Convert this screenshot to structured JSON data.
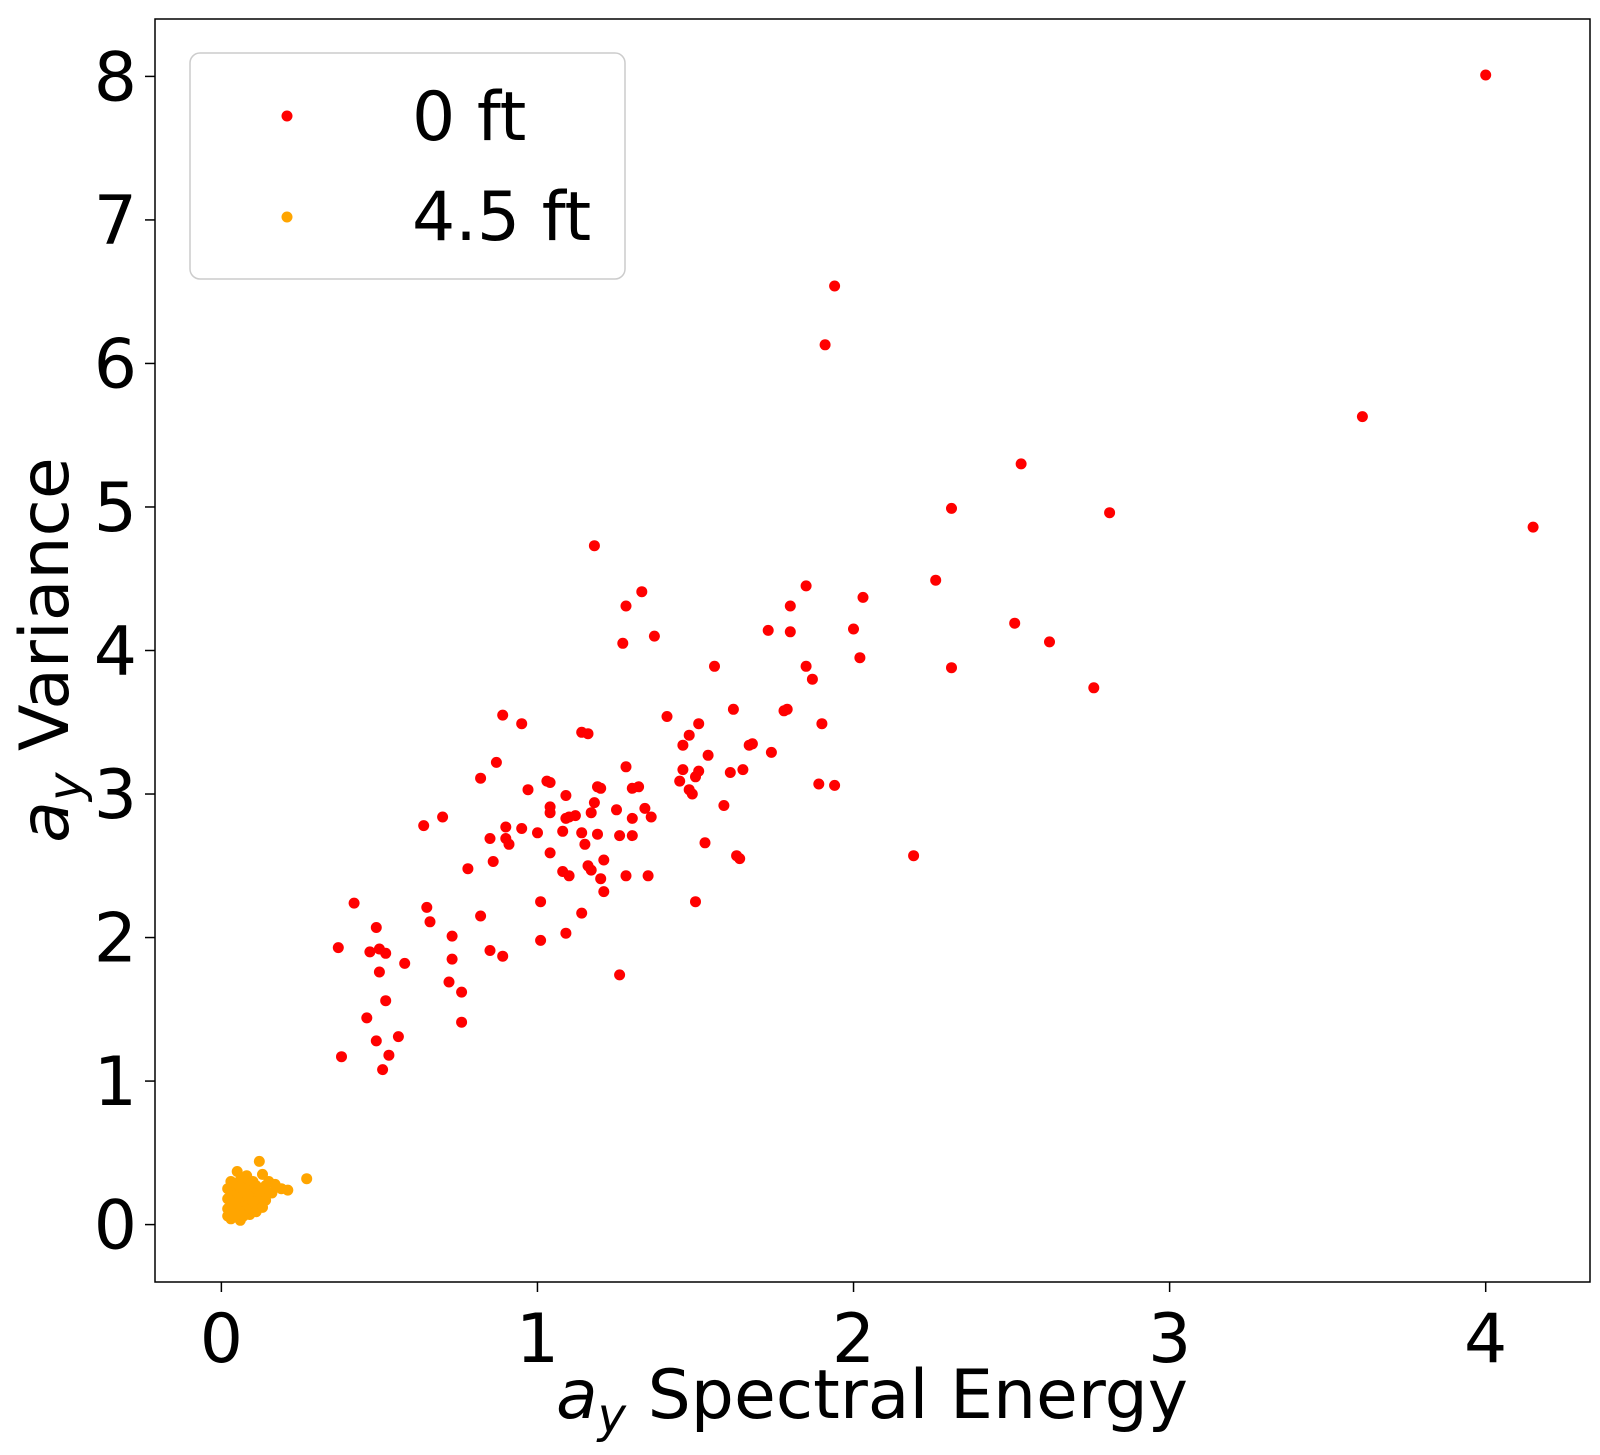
{
  "chart_data": {
    "type": "scatter",
    "title": "",
    "xlabel_var": "a",
    "xlabel_sub": "y",
    "xlabel_rest": " Spectral Energy",
    "ylabel_var": "a",
    "ylabel_sub": "y",
    "ylabel_rest": " Variance",
    "xlim": [
      -0.21,
      4.33
    ],
    "ylim": [
      -0.4,
      8.4
    ],
    "xticks": [
      0,
      1,
      2,
      3,
      4
    ],
    "yticks": [
      0,
      1,
      2,
      3,
      4,
      5,
      6,
      7,
      8
    ],
    "grid": false,
    "legend_position": "top-left",
    "series": [
      {
        "name": "0 ft",
        "color": "#ff0000",
        "points": [
          [
            4.0,
            8.01
          ],
          [
            1.94,
            6.54
          ],
          [
            1.91,
            6.13
          ],
          [
            3.61,
            5.63
          ],
          [
            2.53,
            5.3
          ],
          [
            2.31,
            4.99
          ],
          [
            2.81,
            4.96
          ],
          [
            4.15,
            4.86
          ],
          [
            1.18,
            4.73
          ],
          [
            1.85,
            4.45
          ],
          [
            1.33,
            4.41
          ],
          [
            2.26,
            4.49
          ],
          [
            1.28,
            4.31
          ],
          [
            1.8,
            4.31
          ],
          [
            2.03,
            4.37
          ],
          [
            2.51,
            4.19
          ],
          [
            1.73,
            4.14
          ],
          [
            2.0,
            4.15
          ],
          [
            1.8,
            4.13
          ],
          [
            1.37,
            4.1
          ],
          [
            1.27,
            4.05
          ],
          [
            2.62,
            4.06
          ],
          [
            2.02,
            3.95
          ],
          [
            1.56,
            3.89
          ],
          [
            1.85,
            3.89
          ],
          [
            2.31,
            3.88
          ],
          [
            1.87,
            3.8
          ],
          [
            2.76,
            3.74
          ],
          [
            1.62,
            3.59
          ],
          [
            1.79,
            3.59
          ],
          [
            1.78,
            3.58
          ],
          [
            0.89,
            3.55
          ],
          [
            1.41,
            3.54
          ],
          [
            0.95,
            3.49
          ],
          [
            1.51,
            3.49
          ],
          [
            1.9,
            3.49
          ],
          [
            1.14,
            3.43
          ],
          [
            1.16,
            3.42
          ],
          [
            1.48,
            3.41
          ],
          [
            1.68,
            3.35
          ],
          [
            1.67,
            3.34
          ],
          [
            1.46,
            3.34
          ],
          [
            1.74,
            3.29
          ],
          [
            1.54,
            3.27
          ],
          [
            0.87,
            3.22
          ],
          [
            1.28,
            3.19
          ],
          [
            1.46,
            3.17
          ],
          [
            1.51,
            3.16
          ],
          [
            1.61,
            3.15
          ],
          [
            1.65,
            3.17
          ],
          [
            1.5,
            3.12
          ],
          [
            0.82,
            3.11
          ],
          [
            1.45,
            3.09
          ],
          [
            1.03,
            3.09
          ],
          [
            1.04,
            3.08
          ],
          [
            1.89,
            3.07
          ],
          [
            1.94,
            3.06
          ],
          [
            1.19,
            3.05
          ],
          [
            1.2,
            3.04
          ],
          [
            1.32,
            3.05
          ],
          [
            0.97,
            3.03
          ],
          [
            1.48,
            3.03
          ],
          [
            1.3,
            3.04
          ],
          [
            1.49,
            3.0
          ],
          [
            1.09,
            2.99
          ],
          [
            1.18,
            2.94
          ],
          [
            1.04,
            2.91
          ],
          [
            1.59,
            2.92
          ],
          [
            1.34,
            2.9
          ],
          [
            1.25,
            2.89
          ],
          [
            1.17,
            2.87
          ],
          [
            1.04,
            2.87
          ],
          [
            1.1,
            2.84
          ],
          [
            1.09,
            2.83
          ],
          [
            1.12,
            2.85
          ],
          [
            1.3,
            2.83
          ],
          [
            1.36,
            2.84
          ],
          [
            0.7,
            2.84
          ],
          [
            0.64,
            2.78
          ],
          [
            0.9,
            2.77
          ],
          [
            0.95,
            2.76
          ],
          [
            1.08,
            2.74
          ],
          [
            1.14,
            2.73
          ],
          [
            1.0,
            2.73
          ],
          [
            1.19,
            2.72
          ],
          [
            1.26,
            2.71
          ],
          [
            1.3,
            2.71
          ],
          [
            0.9,
            2.69
          ],
          [
            0.85,
            2.69
          ],
          [
            0.91,
            2.65
          ],
          [
            1.15,
            2.65
          ],
          [
            1.53,
            2.66
          ],
          [
            1.04,
            2.59
          ],
          [
            1.63,
            2.57
          ],
          [
            1.64,
            2.55
          ],
          [
            1.21,
            2.54
          ],
          [
            2.19,
            2.57
          ],
          [
            0.86,
            2.53
          ],
          [
            1.16,
            2.5
          ],
          [
            1.17,
            2.47
          ],
          [
            0.78,
            2.48
          ],
          [
            1.08,
            2.46
          ],
          [
            1.1,
            2.43
          ],
          [
            1.28,
            2.43
          ],
          [
            1.35,
            2.43
          ],
          [
            1.2,
            2.41
          ],
          [
            1.21,
            2.32
          ],
          [
            1.01,
            2.25
          ],
          [
            1.5,
            2.25
          ],
          [
            0.42,
            2.24
          ],
          [
            0.65,
            2.21
          ],
          [
            0.82,
            2.15
          ],
          [
            1.14,
            2.17
          ],
          [
            0.66,
            2.11
          ],
          [
            0.49,
            2.07
          ],
          [
            1.09,
            2.03
          ],
          [
            0.73,
            2.01
          ],
          [
            1.01,
            1.98
          ],
          [
            0.37,
            1.93
          ],
          [
            0.5,
            1.92
          ],
          [
            0.85,
            1.91
          ],
          [
            0.47,
            1.9
          ],
          [
            0.52,
            1.89
          ],
          [
            0.89,
            1.87
          ],
          [
            0.73,
            1.85
          ],
          [
            0.58,
            1.82
          ],
          [
            0.5,
            1.76
          ],
          [
            1.26,
            1.74
          ],
          [
            0.72,
            1.69
          ],
          [
            0.76,
            1.62
          ],
          [
            0.52,
            1.56
          ],
          [
            0.46,
            1.44
          ],
          [
            0.76,
            1.41
          ],
          [
            0.56,
            1.31
          ],
          [
            0.49,
            1.28
          ],
          [
            0.53,
            1.18
          ],
          [
            0.38,
            1.17
          ],
          [
            0.51,
            1.08
          ]
        ]
      },
      {
        "name": "4.5 ft",
        "color": "#ffa500",
        "points": [
          [
            0.12,
            0.44
          ],
          [
            0.05,
            0.37
          ],
          [
            0.27,
            0.32
          ],
          [
            0.08,
            0.34
          ],
          [
            0.13,
            0.35
          ],
          [
            0.03,
            0.3
          ],
          [
            0.06,
            0.31
          ],
          [
            0.1,
            0.3
          ],
          [
            0.15,
            0.3
          ],
          [
            0.17,
            0.28
          ],
          [
            0.04,
            0.27
          ],
          [
            0.07,
            0.28
          ],
          [
            0.09,
            0.26
          ],
          [
            0.11,
            0.27
          ],
          [
            0.14,
            0.27
          ],
          [
            0.02,
            0.25
          ],
          [
            0.05,
            0.25
          ],
          [
            0.08,
            0.24
          ],
          [
            0.12,
            0.25
          ],
          [
            0.19,
            0.25
          ],
          [
            0.21,
            0.24
          ],
          [
            0.03,
            0.22
          ],
          [
            0.06,
            0.22
          ],
          [
            0.1,
            0.22
          ],
          [
            0.13,
            0.23
          ],
          [
            0.16,
            0.22
          ],
          [
            0.04,
            0.2
          ],
          [
            0.07,
            0.2
          ],
          [
            0.09,
            0.19
          ],
          [
            0.12,
            0.2
          ],
          [
            0.02,
            0.18
          ],
          [
            0.05,
            0.18
          ],
          [
            0.08,
            0.17
          ],
          [
            0.11,
            0.18
          ],
          [
            0.14,
            0.17
          ],
          [
            0.03,
            0.16
          ],
          [
            0.06,
            0.15
          ],
          [
            0.09,
            0.15
          ],
          [
            0.12,
            0.14
          ],
          [
            0.04,
            0.13
          ],
          [
            0.07,
            0.12
          ],
          [
            0.1,
            0.12
          ],
          [
            0.02,
            0.11
          ],
          [
            0.05,
            0.1
          ],
          [
            0.08,
            0.1
          ],
          [
            0.03,
            0.08
          ],
          [
            0.06,
            0.08
          ],
          [
            0.09,
            0.07
          ],
          [
            0.02,
            0.06
          ],
          [
            0.05,
            0.05
          ],
          [
            0.03,
            0.04
          ],
          [
            0.06,
            0.03
          ],
          [
            0.04,
            0.09
          ],
          [
            0.07,
            0.06
          ],
          [
            0.11,
            0.09
          ],
          [
            0.04,
            0.15
          ],
          [
            0.08,
            0.21
          ],
          [
            0.1,
            0.16
          ],
          [
            0.13,
            0.12
          ],
          [
            0.06,
            0.26
          ]
        ]
      }
    ]
  }
}
